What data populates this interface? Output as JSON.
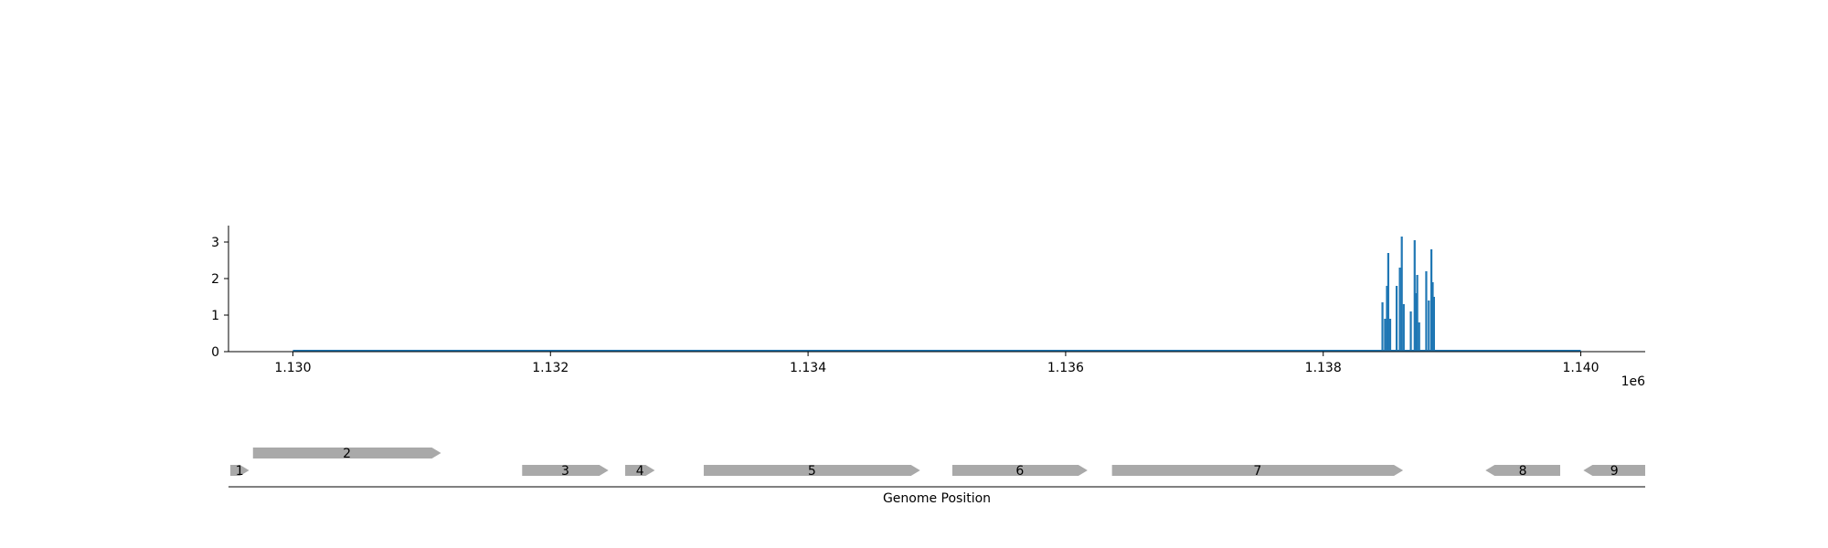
{
  "chart_data": [
    {
      "type": "line",
      "x_offset_label": "1e6",
      "xlim": [
        1129500,
        1140500
      ],
      "ylim": [
        0,
        3.45
      ],
      "x_ticks": [
        {
          "value": 1130000,
          "label": "1.130"
        },
        {
          "value": 1132000,
          "label": "1.132"
        },
        {
          "value": 1134000,
          "label": "1.134"
        },
        {
          "value": 1136000,
          "label": "1.136"
        },
        {
          "value": 1138000,
          "label": "1.138"
        },
        {
          "value": 1140000,
          "label": "1.140"
        }
      ],
      "y_ticks": [
        {
          "value": 0,
          "label": "0"
        },
        {
          "value": 1,
          "label": "1"
        },
        {
          "value": 2,
          "label": "2"
        },
        {
          "value": 3,
          "label": "3"
        }
      ],
      "color": "#1f77b4",
      "baseline_range": [
        1130000,
        1140000
      ],
      "peaks": [
        {
          "x": 1138460,
          "y": 1.35
        },
        {
          "x": 1138480,
          "y": 0.9
        },
        {
          "x": 1138495,
          "y": 1.8
        },
        {
          "x": 1138505,
          "y": 2.7
        },
        {
          "x": 1138520,
          "y": 0.9
        },
        {
          "x": 1138570,
          "y": 1.8
        },
        {
          "x": 1138595,
          "y": 2.3
        },
        {
          "x": 1138610,
          "y": 3.15
        },
        {
          "x": 1138625,
          "y": 1.3
        },
        {
          "x": 1138680,
          "y": 1.1
        },
        {
          "x": 1138710,
          "y": 3.05
        },
        {
          "x": 1138720,
          "y": 1.6
        },
        {
          "x": 1138730,
          "y": 2.1
        },
        {
          "x": 1138745,
          "y": 0.8
        },
        {
          "x": 1138800,
          "y": 2.2
        },
        {
          "x": 1138820,
          "y": 1.4
        },
        {
          "x": 1138840,
          "y": 2.8
        },
        {
          "x": 1138850,
          "y": 1.9
        },
        {
          "x": 1138860,
          "y": 1.5
        }
      ],
      "spines": "left-bottom",
      "grid": false
    },
    {
      "type": "gene-track",
      "xlabel": "Genome Position",
      "color": "#a9a9a9",
      "genes": [
        {
          "label": "1",
          "start": 1129500,
          "end": 1129660,
          "strand": "+",
          "row": 0
        },
        {
          "label": "2",
          "start": 1129690,
          "end": 1131150,
          "strand": "+",
          "row": 1
        },
        {
          "label": "3",
          "start": 1131780,
          "end": 1132450,
          "strand": "+",
          "row": 0
        },
        {
          "label": "4",
          "start": 1132580,
          "end": 1132810,
          "strand": "+",
          "row": 0
        },
        {
          "label": "5",
          "start": 1133190,
          "end": 1134870,
          "strand": "+",
          "row": 0
        },
        {
          "label": "6",
          "start": 1135120,
          "end": 1136170,
          "strand": "+",
          "row": 0
        },
        {
          "label": "7",
          "start": 1136360,
          "end": 1138620,
          "strand": "+",
          "row": 0
        },
        {
          "label": "8",
          "start": 1139260,
          "end": 1139840,
          "strand": "-",
          "row": 0
        },
        {
          "label": "9",
          "start": 1140020,
          "end": 1140500,
          "strand": "-",
          "row": 0
        }
      ]
    }
  ]
}
